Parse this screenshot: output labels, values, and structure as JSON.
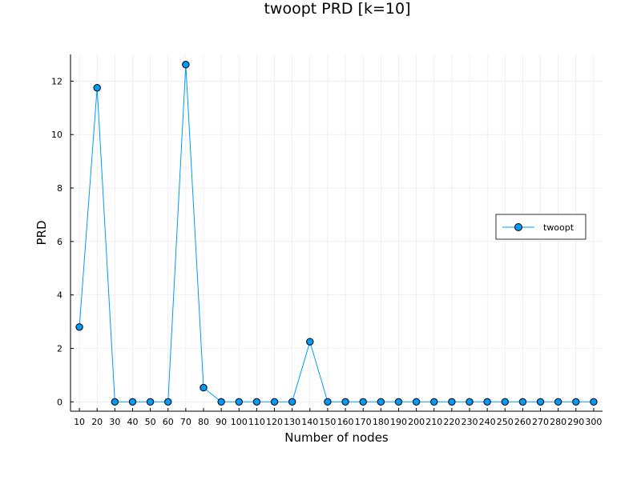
{
  "chart_data": {
    "type": "line",
    "title": "twoopt PRD [k=10]",
    "xlabel": "Number of nodes",
    "ylabel": "PRD",
    "x": [
      10,
      20,
      30,
      40,
      50,
      60,
      70,
      80,
      90,
      100,
      110,
      120,
      130,
      140,
      150,
      160,
      170,
      180,
      190,
      200,
      210,
      220,
      230,
      240,
      250,
      260,
      270,
      280,
      290,
      300
    ],
    "series": [
      {
        "name": "twoopt",
        "values": [
          2.8,
          11.75,
          0,
          0,
          0,
          0,
          12.62,
          0.53,
          0,
          0,
          0,
          0,
          0,
          2.25,
          0,
          0,
          0,
          0,
          0,
          0,
          0,
          0,
          0,
          0,
          0,
          0,
          0,
          0,
          0,
          0
        ]
      }
    ],
    "xlim": [
      5,
      305
    ],
    "ylim": [
      -0.35,
      13
    ],
    "yticks": [
      0,
      2,
      4,
      6,
      8,
      10,
      12
    ],
    "grid": true,
    "legend_position": "right",
    "colors": {
      "series": "#009af9",
      "marker": "#009af9",
      "marker_edge": "#000000",
      "grid": "#e6e6e6"
    }
  }
}
